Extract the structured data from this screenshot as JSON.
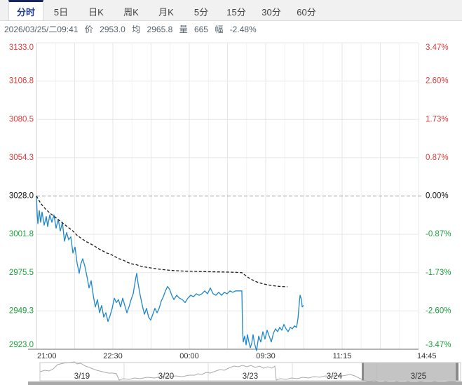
{
  "tabs": {
    "items": [
      {
        "label": "分时",
        "active": true
      },
      {
        "label": "5日",
        "active": false
      },
      {
        "label": "日K",
        "active": false
      },
      {
        "label": "周K",
        "active": false
      },
      {
        "label": "月K",
        "active": false
      },
      {
        "label": "5分",
        "active": false
      },
      {
        "label": "15分",
        "active": false
      },
      {
        "label": "30分",
        "active": false
      },
      {
        "label": "60分",
        "active": false
      }
    ]
  },
  "stats": {
    "datetime": "2026/03/25/二09:41",
    "price_label": "价",
    "price": "2953.0",
    "avg_label": "均",
    "avg": "2965.8",
    "vol_label": "量",
    "vol": "665",
    "chg_label": "幅",
    "chg": "-2.48%"
  },
  "chart_data": {
    "type": "line",
    "title": "",
    "ylim": [
      2923.0,
      3133.0
    ],
    "base_price": 3028.0,
    "grid": true,
    "y_axis_left": {
      "labels": [
        "3133.0",
        "3106.8",
        "3080.5",
        "3054.3",
        "3028.0",
        "3001.8",
        "2975.5",
        "2949.3",
        "2923.0"
      ],
      "colors": [
        "#dd3b3b",
        "#dd3b3b",
        "#dd3b3b",
        "#dd3b3b",
        "#111111",
        "#1ba03c",
        "#1ba03c",
        "#1ba03c",
        "#1ba03c"
      ]
    },
    "y_axis_right": {
      "labels": [
        "3.47%",
        "2.60%",
        "1.73%",
        "0.87%",
        "0.00%",
        "-0.87%",
        "-1.73%",
        "-2.60%",
        "-3.47%"
      ],
      "colors": [
        "#dd3b3b",
        "#dd3b3b",
        "#dd3b3b",
        "#dd3b3b",
        "#111111",
        "#1ba03c",
        "#1ba03c",
        "#1ba03c",
        "#1ba03c"
      ]
    },
    "x_axis": {
      "labels": [
        "21:00",
        "22:30",
        "00:00",
        "09:30",
        "11:15",
        "14:45"
      ]
    },
    "series": [
      {
        "name": "price",
        "color": "#1f86c8",
        "dashed": false,
        "points": [
          [
            52,
            3028
          ],
          [
            53,
            3016
          ],
          [
            54,
            3009
          ],
          [
            56,
            3018
          ],
          [
            58,
            3010
          ],
          [
            60,
            3017
          ],
          [
            63,
            3008
          ],
          [
            66,
            3014
          ],
          [
            68,
            3007
          ],
          [
            71,
            3015
          ],
          [
            74,
            3010
          ],
          [
            77,
            3015
          ],
          [
            80,
            3006
          ],
          [
            83,
            3012
          ],
          [
            86,
            3004
          ],
          [
            89,
            3010
          ],
          [
            92,
            2997
          ],
          [
            95,
            3003
          ],
          [
            98,
            2998
          ],
          [
            101,
            3000
          ],
          [
            104,
            2989
          ],
          [
            107,
            2993
          ],
          [
            110,
            2982
          ],
          [
            113,
            2975
          ],
          [
            115,
            2981
          ],
          [
            118,
            2985
          ],
          [
            121,
            2980
          ],
          [
            124,
            2973
          ],
          [
            127,
            2965
          ],
          [
            130,
            2970
          ],
          [
            133,
            2960
          ],
          [
            136,
            2952
          ],
          [
            139,
            2957
          ],
          [
            142,
            2948
          ],
          [
            145,
            2953
          ],
          [
            148,
            2945
          ],
          [
            151,
            2948
          ],
          [
            154,
            2942
          ],
          [
            157,
            2946
          ],
          [
            160,
            2951
          ],
          [
            163,
            2958
          ],
          [
            166,
            2955
          ],
          [
            169,
            2957
          ],
          [
            172,
            2952
          ],
          [
            175,
            2958
          ],
          [
            178,
            2953
          ],
          [
            181,
            2948
          ],
          [
            184,
            2952
          ],
          [
            187,
            2957
          ],
          [
            190,
            2961
          ],
          [
            193,
            2970
          ],
          [
            195,
            2975
          ],
          [
            197,
            2968
          ],
          [
            200,
            2960
          ],
          [
            203,
            2953
          ],
          [
            206,
            2947
          ],
          [
            209,
            2951
          ],
          [
            212,
            2945
          ],
          [
            215,
            2943
          ],
          [
            218,
            2947
          ],
          [
            221,
            2951
          ],
          [
            224,
            2948
          ],
          [
            227,
            2951
          ],
          [
            230,
            2956
          ],
          [
            233,
            2959
          ],
          [
            236,
            2963
          ],
          [
            239,
            2966
          ],
          [
            242,
            2964
          ],
          [
            245,
            2960
          ],
          [
            248,
            2957
          ],
          [
            252,
            2960
          ],
          [
            256,
            2958
          ],
          [
            260,
            2957
          ],
          [
            264,
            2955
          ],
          [
            268,
            2958
          ],
          [
            272,
            2960
          ],
          [
            276,
            2959
          ],
          [
            280,
            2961
          ],
          [
            284,
            2960
          ],
          [
            288,
            2961
          ],
          [
            292,
            2963
          ],
          [
            296,
            2961
          ],
          [
            300,
            2965
          ],
          [
            304,
            2961
          ],
          [
            308,
            2960
          ],
          [
            312,
            2962
          ],
          [
            316,
            2960
          ],
          [
            320,
            2962
          ],
          [
            324,
            2961
          ],
          [
            328,
            2963
          ],
          [
            332,
            2962
          ],
          [
            336,
            2963
          ],
          [
            340,
            2963
          ],
          [
            344,
            2963
          ],
          [
            345,
            2963
          ],
          [
            346,
            2936
          ],
          [
            347,
            2928
          ],
          [
            349,
            2932
          ],
          [
            351,
            2926
          ],
          [
            353,
            2933
          ],
          [
            355,
            2928
          ],
          [
            357,
            2924
          ],
          [
            359,
            2927
          ],
          [
            361,
            2933
          ],
          [
            363,
            2927
          ],
          [
            366,
            2922
          ],
          [
            369,
            2932
          ],
          [
            372,
            2928
          ],
          [
            375,
            2935
          ],
          [
            378,
            2930
          ],
          [
            381,
            2936
          ],
          [
            384,
            2932
          ],
          [
            387,
            2928
          ],
          [
            390,
            2934
          ],
          [
            393,
            2937
          ],
          [
            396,
            2935
          ],
          [
            399,
            2938
          ],
          [
            402,
            2936
          ],
          [
            405,
            2940
          ],
          [
            408,
            2937
          ],
          [
            411,
            2935
          ],
          [
            414,
            2938
          ],
          [
            417,
            2937
          ],
          [
            420,
            2939
          ],
          [
            423,
            2938
          ],
          [
            425,
            2944
          ],
          [
            427,
            2955
          ],
          [
            428,
            2960
          ],
          [
            430,
            2957
          ],
          [
            431,
            2952
          ],
          [
            433,
            2953
          ]
        ]
      },
      {
        "name": "average",
        "color": "#1a1a1a",
        "dashed": true,
        "points": [
          [
            52,
            3028
          ],
          [
            58,
            3023
          ],
          [
            65,
            3019
          ],
          [
            72,
            3016
          ],
          [
            80,
            3013
          ],
          [
            88,
            3010
          ],
          [
            96,
            3007
          ],
          [
            104,
            3004
          ],
          [
            110,
            3001
          ],
          [
            116,
            2999
          ],
          [
            122,
            2997
          ],
          [
            128,
            2995.5
          ],
          [
            134,
            2994
          ],
          [
            140,
            2992
          ],
          [
            146,
            2990.5
          ],
          [
            152,
            2989
          ],
          [
            158,
            2988
          ],
          [
            164,
            2986.5
          ],
          [
            170,
            2985
          ],
          [
            176,
            2984
          ],
          [
            182,
            2982.5
          ],
          [
            188,
            2981.5
          ],
          [
            194,
            2981
          ],
          [
            200,
            2980
          ],
          [
            206,
            2979.4
          ],
          [
            212,
            2979
          ],
          [
            218,
            2978.5
          ],
          [
            224,
            2978
          ],
          [
            230,
            2977.7
          ],
          [
            236,
            2977.4
          ],
          [
            242,
            2977.1
          ],
          [
            248,
            2976.9
          ],
          [
            256,
            2976.7
          ],
          [
            264,
            2976.5
          ],
          [
            272,
            2976.4
          ],
          [
            280,
            2976.3
          ],
          [
            290,
            2976.2
          ],
          [
            300,
            2976.1
          ],
          [
            310,
            2976
          ],
          [
            320,
            2975.9
          ],
          [
            330,
            2975.8
          ],
          [
            340,
            2975.6
          ],
          [
            345,
            2975.5
          ],
          [
            349,
            2974
          ],
          [
            353,
            2972.5
          ],
          [
            358,
            2971
          ],
          [
            363,
            2969.8
          ],
          [
            368,
            2968.8
          ],
          [
            374,
            2968
          ],
          [
            380,
            2967.3
          ],
          [
            386,
            2966.8
          ],
          [
            392,
            2966.4
          ],
          [
            398,
            2966.1
          ],
          [
            404,
            2965.9
          ],
          [
            410,
            2965.8
          ]
        ]
      }
    ]
  },
  "navigator": {
    "dates": [
      "3/19",
      "3/20",
      "3/23",
      "3/24",
      "3/25"
    ],
    "selected": "3/25",
    "sparkline": [
      [
        57,
        530
      ],
      [
        64,
        528
      ],
      [
        70,
        529
      ],
      [
        76,
        526
      ],
      [
        82,
        520
      ],
      [
        90,
        518
      ],
      [
        98,
        517
      ],
      [
        106,
        516
      ],
      [
        110,
        519
      ],
      [
        115,
        518
      ],
      [
        122,
        522
      ],
      [
        130,
        525
      ],
      [
        138,
        528
      ],
      [
        146,
        530
      ],
      [
        154,
        532
      ],
      [
        161,
        532
      ],
      [
        166,
        533
      ],
      [
        170,
        542
      ],
      [
        176,
        540
      ],
      [
        184,
        541
      ],
      [
        192,
        539
      ],
      [
        200,
        540
      ],
      [
        210,
        538
      ],
      [
        220,
        539
      ],
      [
        230,
        537
      ],
      [
        240,
        538
      ],
      [
        250,
        536
      ],
      [
        260,
        537
      ],
      [
        270,
        535
      ],
      [
        278,
        535
      ],
      [
        282,
        533
      ],
      [
        288,
        534
      ],
      [
        294,
        531
      ],
      [
        300,
        532
      ],
      [
        308,
        529
      ],
      [
        314,
        527
      ],
      [
        320,
        528
      ],
      [
        328,
        524
      ],
      [
        334,
        522
      ],
      [
        340,
        523
      ],
      [
        346,
        521
      ],
      [
        352,
        523
      ],
      [
        358,
        521
      ],
      [
        364,
        524
      ],
      [
        370,
        522
      ],
      [
        376,
        525
      ],
      [
        382,
        523
      ],
      [
        388,
        525
      ],
      [
        392,
        522
      ],
      [
        394,
        542
      ],
      [
        400,
        540
      ],
      [
        408,
        541
      ],
      [
        416,
        539
      ],
      [
        424,
        540
      ],
      [
        432,
        538
      ],
      [
        440,
        539
      ],
      [
        448,
        537
      ],
      [
        456,
        538
      ],
      [
        464,
        536
      ],
      [
        472,
        537
      ],
      [
        480,
        535
      ],
      [
        488,
        536
      ],
      [
        494,
        535
      ],
      [
        500,
        534
      ],
      [
        506,
        536
      ],
      [
        512,
        539
      ],
      [
        518,
        542
      ],
      [
        526,
        544
      ],
      [
        534,
        543
      ],
      [
        542,
        545
      ],
      [
        550,
        544
      ],
      [
        558,
        545
      ],
      [
        566,
        544
      ],
      [
        574,
        545
      ],
      [
        582,
        544
      ],
      [
        590,
        545
      ],
      [
        600,
        544
      ],
      [
        610,
        545
      ],
      [
        620,
        544
      ],
      [
        630,
        545
      ],
      [
        640,
        544
      ],
      [
        650,
        544
      ]
    ]
  },
  "colors": {
    "up_red": "#dd3b3b",
    "down_green": "#1ba03c",
    "price_line": "#1f86c8",
    "avg_line": "#1a1a1a",
    "tab_active": "#23409a",
    "tab_active_border": "#16255e",
    "grid": "#e7e7e7",
    "zero_line": "#999999",
    "nav_slider": "#b5b5b5"
  }
}
